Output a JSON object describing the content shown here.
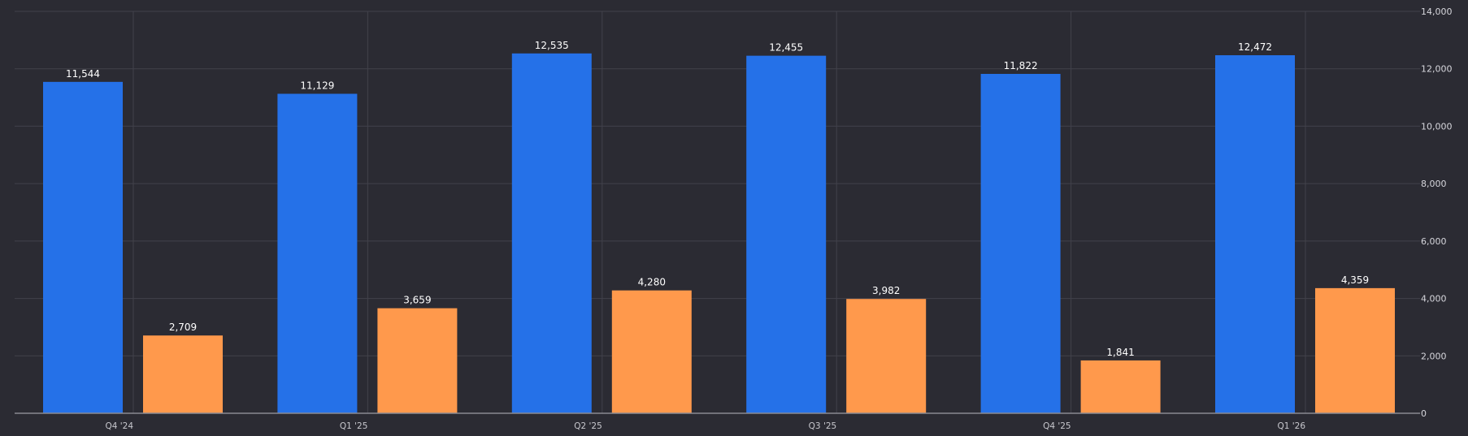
{
  "chart_data": {
    "type": "bar",
    "categories": [
      "Q4 '24",
      "Q1 '25",
      "Q2 '25",
      "Q3 '25",
      "Q4 '25",
      "Q1 '26"
    ],
    "series": [
      {
        "color": "#2571e8",
        "values": [
          11544,
          11129,
          12535,
          12455,
          11822,
          12472
        ]
      },
      {
        "color": "#ff994c",
        "values": [
          2709,
          3659,
          4280,
          3982,
          1841,
          4359
        ]
      }
    ],
    "value_labels": [
      [
        "11,544",
        "11,129",
        "12,535",
        "12,455",
        "11,822",
        "12,472"
      ],
      [
        "2,709",
        "3,659",
        "4,280",
        "3,982",
        "1,841",
        "4,359"
      ]
    ],
    "ylim": [
      0,
      14000
    ],
    "yticks": [
      0,
      2000,
      4000,
      6000,
      8000,
      10000,
      12000,
      14000
    ],
    "ytick_labels": [
      "0",
      "2,000",
      "4,000",
      "6,000",
      "8,000",
      "10,000",
      "12,000",
      "14,000"
    ],
    "yaxis_position": "right",
    "grid": true,
    "title": "",
    "xlabel": "",
    "ylabel": ""
  }
}
